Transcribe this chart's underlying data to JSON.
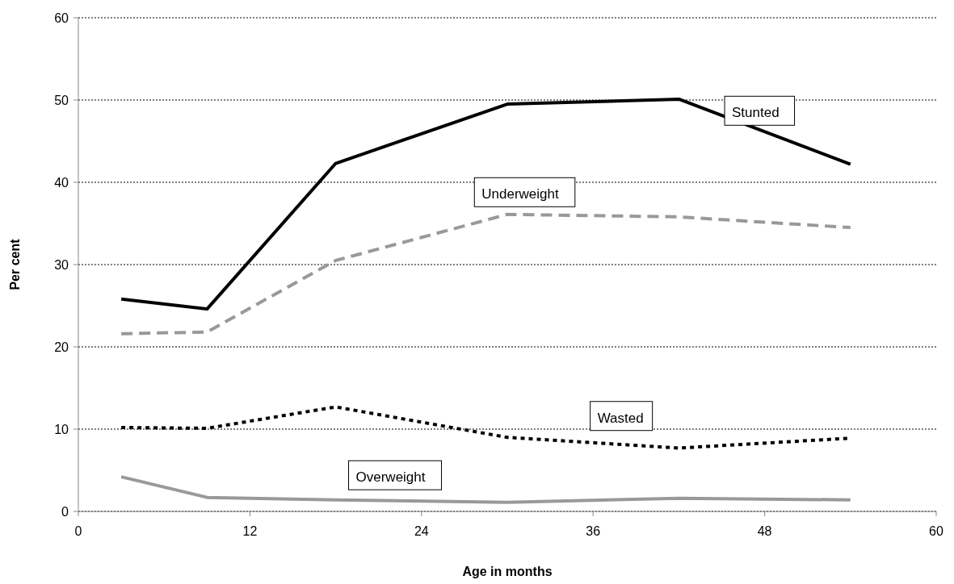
{
  "chart_data": {
    "type": "line",
    "xlabel": "Age in months",
    "ylabel": "Per cent",
    "x": [
      3,
      9,
      18,
      30,
      42,
      54
    ],
    "xlim": [
      0,
      60
    ],
    "xticks": [
      0,
      12,
      24,
      36,
      48,
      60
    ],
    "ylim": [
      0,
      60
    ],
    "yticks": [
      0,
      10,
      20,
      30,
      40,
      50,
      60
    ],
    "grid": "y",
    "marker": "none",
    "series": [
      {
        "name": "Stunted",
        "color": "#000000",
        "line_style": "solid",
        "values": [
          25.8,
          24.6,
          42.3,
          49.5,
          50.1,
          42.2
        ]
      },
      {
        "name": "Underweight",
        "color": "#999999",
        "line_style": "dashed",
        "values": [
          21.6,
          21.8,
          30.5,
          36.1,
          35.8,
          34.5
        ]
      },
      {
        "name": "Wasted",
        "color": "#000000",
        "line_style": "dotted",
        "values": [
          10.2,
          10.1,
          12.7,
          9.0,
          7.7,
          8.9
        ]
      },
      {
        "name": "Overweight",
        "color": "#999999",
        "line_style": "solid",
        "values": [
          4.2,
          1.7,
          1.4,
          1.1,
          1.6,
          1.4
        ]
      }
    ]
  }
}
